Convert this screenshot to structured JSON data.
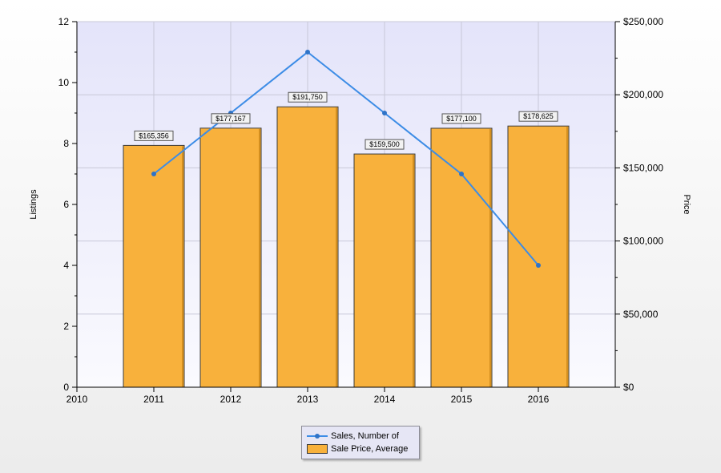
{
  "chart_data": {
    "type": "bar+line",
    "x_ticks": [
      "2010",
      "2011",
      "2012",
      "2013",
      "2014",
      "2015",
      "2016"
    ],
    "categories": [
      "2011",
      "2012",
      "2013",
      "2014",
      "2015",
      "2016"
    ],
    "series": [
      {
        "name": "Sales, Number of",
        "type": "line",
        "axis": "left",
        "values": [
          7,
          9,
          11,
          9,
          7,
          4
        ]
      },
      {
        "name": "Sale Price, Average",
        "type": "bar",
        "axis": "right",
        "values": [
          165356,
          177167,
          191750,
          159500,
          177100,
          178625
        ],
        "labels": [
          "$165,356",
          "$177,167",
          "$191,750",
          "$159,500",
          "$177,100",
          "$178,625"
        ]
      }
    ],
    "ylabel_left": "Listings",
    "ylabel_right": "Price",
    "ylim_left": [
      0,
      12
    ],
    "ylim_right": [
      0,
      250000
    ],
    "left_ticks": [
      "0",
      "2",
      "4",
      "6",
      "8",
      "10",
      "12"
    ],
    "right_ticks": [
      "$0",
      "$50,000",
      "$100,000",
      "$150,000",
      "$200,000",
      "$250,000"
    ],
    "grid": true,
    "legend_position": "bottom-center",
    "colors": {
      "bar": "#f8b13c",
      "line": "#3c8ce6",
      "plot_bg": "#e8e8fa"
    }
  }
}
